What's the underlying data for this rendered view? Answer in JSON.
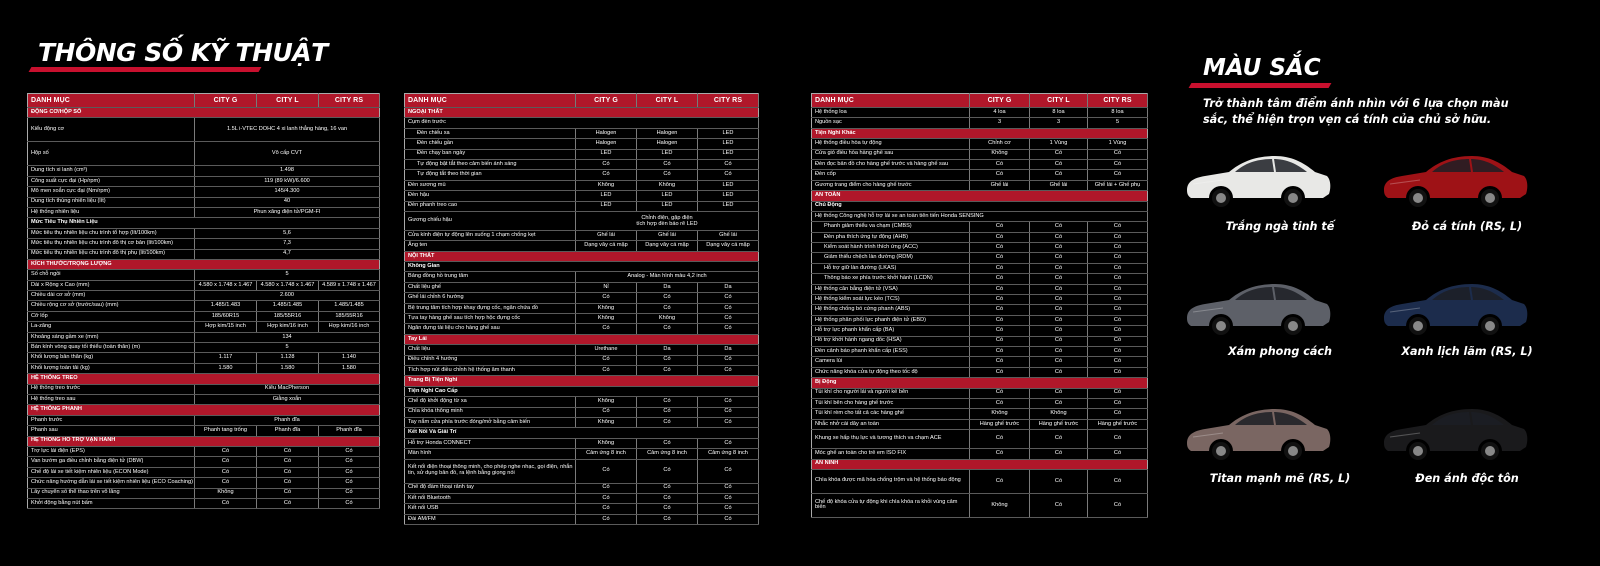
{
  "title": "THÔNG SỐ KỸ THUẬT",
  "headers": [
    "DANH MỤC",
    "CITY G",
    "CITY L",
    "CITY RS"
  ],
  "table1": [
    {
      "t": "sec",
      "c": [
        "ĐỘNG CƠ/HỘP SỐ"
      ]
    },
    {
      "t": "row",
      "h": "r3",
      "c": [
        "Kiểu động cơ",
        "1.5L i-VTEC DOHC 4 xi lanh thẳng hàng, 16 van"
      ]
    },
    {
      "t": "row",
      "h": "r3",
      "c": [
        "Hộp số",
        "Vô cấp CVT"
      ]
    },
    {
      "t": "row",
      "c": [
        "Dung tích xi lanh (cm³)",
        "1.498"
      ]
    },
    {
      "t": "row",
      "c": [
        "Công suất cực đại (Hp/rpm)",
        "119 (89 kW)/6.600"
      ]
    },
    {
      "t": "row",
      "c": [
        "Mô men xoắn cực đại (Nm/rpm)",
        "145/4.300"
      ]
    },
    {
      "t": "row",
      "c": [
        "Dung tích thùng nhiên liệu (lít)",
        "40"
      ]
    },
    {
      "t": "row",
      "c": [
        "Hệ thống nhiên liệu",
        "Phun xăng điện tử/PGM-FI"
      ]
    },
    {
      "t": "sub",
      "c": [
        "Mức Tiêu Thụ Nhiên Liệu"
      ]
    },
    {
      "t": "row",
      "c": [
        "Mức tiêu thụ nhiên liệu chu trình tổ hợp (lít/100km)",
        "5,6"
      ]
    },
    {
      "t": "row",
      "c": [
        "Mức tiêu thụ nhiên liệu chu trình đô thị cơ bản (lít/100km)",
        "7,3"
      ]
    },
    {
      "t": "row",
      "c": [
        "Mức tiêu thụ nhiên liệu chu trình đô thị phụ (lít/100km)",
        "4,7"
      ]
    },
    {
      "t": "sec",
      "c": [
        "KÍCH THƯỚC/TRỌNG LƯỢNG"
      ]
    },
    {
      "t": "row",
      "c": [
        "Số chỗ ngồi",
        "5"
      ]
    },
    {
      "t": "row",
      "c": [
        "Dài x Rộng x Cao (mm)",
        "4.580 x 1.748 x 1.467",
        "4.580 x 1.748 x 1.467",
        "4.589 x 1.748 x 1.467"
      ]
    },
    {
      "t": "row",
      "c": [
        "Chiều dài cơ sở (mm)",
        "2.600"
      ]
    },
    {
      "t": "row",
      "c": [
        "Chiều rộng cơ sở (trước/sau) (mm)",
        "1.485/1.483",
        "1.485/1.485",
        "1.485/1.485"
      ]
    },
    {
      "t": "row",
      "c": [
        "Cỡ lốp",
        "185/60R15",
        "185/55R16",
        "185/55R16"
      ]
    },
    {
      "t": "row",
      "c": [
        "La-zăng",
        "Hợp kim/15 inch",
        "Hợp kim/16 inch",
        "Hợp kim/16 inch"
      ]
    },
    {
      "t": "row",
      "c": [
        "Khoảng sáng gầm xe (mm)",
        "134"
      ]
    },
    {
      "t": "row",
      "c": [
        "Bán kính vòng quay tối thiểu (toàn thân) (m)",
        "5"
      ]
    },
    {
      "t": "row",
      "c": [
        "Khối lượng bản thân (kg)",
        "1.117",
        "1.128",
        "1.140"
      ]
    },
    {
      "t": "row",
      "c": [
        "Khối lượng toàn tải (kg)",
        "1.580",
        "1.580",
        "1.580"
      ]
    },
    {
      "t": "sec",
      "c": [
        "HỆ THỐNG TREO"
      ]
    },
    {
      "t": "row",
      "c": [
        "Hệ thống treo trước",
        "Kiểu MacPherson"
      ]
    },
    {
      "t": "row",
      "c": [
        "Hệ thống treo sau",
        "Giằng xoắn"
      ]
    },
    {
      "t": "sec",
      "c": [
        "HỆ THỐNG PHANH"
      ]
    },
    {
      "t": "row",
      "c": [
        "Phanh trước",
        "Phanh đĩa"
      ]
    },
    {
      "t": "row",
      "c": [
        "Phanh sau",
        "Phanh tang trống",
        "Phanh đĩa",
        "Phanh đĩa"
      ]
    },
    {
      "t": "sec",
      "c": [
        "HỆ THỐNG HỖ TRỢ VẬN HÀNH"
      ]
    },
    {
      "t": "row",
      "c": [
        "Trợ lực lái điện (EPS)",
        "Có",
        "Có",
        "Có"
      ]
    },
    {
      "t": "row",
      "c": [
        "Van bướm ga điều chỉnh bằng điện tử (DBW)",
        "Có",
        "Có",
        "Có"
      ]
    },
    {
      "t": "row",
      "c": [
        "Chế độ lái xe tiết kiệm nhiên liệu (ECON Mode)",
        "Có",
        "Có",
        "Có"
      ]
    },
    {
      "t": "row",
      "c": [
        "Chức năng hướng dẫn lái xe tiết kiệm nhiên liệu (ECO Coaching)",
        "Có",
        "Có",
        "Có"
      ]
    },
    {
      "t": "row",
      "c": [
        "Lẫy chuyển số thể thao trên vô lăng",
        "Không",
        "Có",
        "Có"
      ]
    },
    {
      "t": "row",
      "c": [
        "Khởi động bằng nút bấm",
        "Có",
        "Có",
        "Có"
      ]
    }
  ],
  "table2": [
    {
      "t": "sec",
      "c": [
        "NGOẠI THẤT"
      ]
    },
    {
      "t": "row",
      "c": [
        "Cụm đèn trước"
      ]
    },
    {
      "t": "row",
      "i": 1,
      "c": [
        "Đèn chiếu xa",
        "Halogen",
        "Halogen",
        "LED"
      ]
    },
    {
      "t": "row",
      "i": 1,
      "c": [
        "Đèn chiếu gần",
        "Halogen",
        "Halogen",
        "LED"
      ]
    },
    {
      "t": "row",
      "i": 1,
      "c": [
        "Đèn chạy ban ngày",
        "LED",
        "LED",
        "LED"
      ]
    },
    {
      "t": "row",
      "i": 1,
      "c": [
        "Tự động bật tắt theo cảm biến ánh sáng",
        "Có",
        "Có",
        "Có"
      ]
    },
    {
      "t": "row",
      "i": 1,
      "c": [
        "Tự động tắt theo thời gian",
        "Có",
        "Có",
        "Có"
      ]
    },
    {
      "t": "row",
      "c": [
        "Đèn sương mù",
        "Không",
        "Không",
        "LED"
      ]
    },
    {
      "t": "row",
      "c": [
        "Đèn hậu",
        "LED",
        "LED",
        "LED"
      ]
    },
    {
      "t": "row",
      "c": [
        "Đèn phanh treo cao",
        "LED",
        "LED",
        "LED"
      ]
    },
    {
      "t": "row",
      "h": "r2",
      "c": [
        "Gương chiếu hậu",
        "Chỉnh điện, gập điện\ntích hợp đèn báo rẽ LED"
      ]
    },
    {
      "t": "row",
      "c": [
        "Cửa kính điện tự động lên xuống 1 chạm chống kẹt",
        "Ghế lái",
        "Ghế lái",
        "Ghế lái"
      ]
    },
    {
      "t": "row",
      "c": [
        "Ăng ten",
        "Dạng vây cá mập",
        "Dạng vây cá mập",
        "Dạng vây cá mập"
      ]
    },
    {
      "t": "sec",
      "c": [
        "NỘI THẤT"
      ]
    },
    {
      "t": "sub",
      "c": [
        "Không Gian"
      ]
    },
    {
      "t": "row",
      "c": [
        "Bảng đồng hồ trung tâm",
        "Analog - Màn hình màu 4,2 inch"
      ]
    },
    {
      "t": "row",
      "c": [
        "Chất liệu ghế",
        "Nỉ",
        "Da",
        "Da"
      ]
    },
    {
      "t": "row",
      "c": [
        "Ghế lái chỉnh 6 hướng",
        "Có",
        "Có",
        "Có"
      ]
    },
    {
      "t": "row",
      "c": [
        "Bệ trung tâm tích hợp khay đựng cốc, ngăn chứa đồ",
        "Không",
        "Có",
        "Có"
      ]
    },
    {
      "t": "row",
      "c": [
        "Tựa tay hàng ghế sau tích hợp hộc đựng cốc",
        "Không",
        "Không",
        "Có"
      ]
    },
    {
      "t": "row",
      "c": [
        "Ngăn đựng tài liệu cho hàng ghế sau",
        "Có",
        "Có",
        "Có"
      ]
    },
    {
      "t": "sec",
      "c": [
        "Tay Lái"
      ]
    },
    {
      "t": "row",
      "c": [
        "Chất liệu",
        "Urethane",
        "Da",
        "Da"
      ]
    },
    {
      "t": "row",
      "c": [
        "Điều chỉnh 4 hướng",
        "Có",
        "Có",
        "Có"
      ]
    },
    {
      "t": "row",
      "c": [
        "Tích hợp nút điều chỉnh hệ thống âm thanh",
        "Có",
        "Có",
        "Có"
      ]
    },
    {
      "t": "sec",
      "c": [
        "Trang Bị Tiện Nghi"
      ]
    },
    {
      "t": "sub",
      "c": [
        "Tiện Nghi Cao Cấp"
      ]
    },
    {
      "t": "row",
      "c": [
        "Chế độ khởi động từ xa",
        "Không",
        "Có",
        "Có"
      ]
    },
    {
      "t": "row",
      "c": [
        "Chìa khóa thông minh",
        "Có",
        "Có",
        "Có"
      ]
    },
    {
      "t": "row",
      "c": [
        "Tay nắm cửa phía trước đóng/mở bằng cảm biến",
        "Không",
        "Có",
        "Có"
      ]
    },
    {
      "t": "sub",
      "c": [
        "Kết Nối Và Giải Trí"
      ]
    },
    {
      "t": "row",
      "c": [
        "Hỗ trợ Honda CONNECT",
        "Không",
        "Có",
        "Có"
      ]
    },
    {
      "t": "row",
      "c": [
        "Màn hình",
        "Cảm ứng 8 inch",
        "Cảm ứng 8 inch",
        "Cảm ứng 8 inch"
      ]
    },
    {
      "t": "row",
      "h": "r3",
      "c": [
        "Kết nối điện thoại thông minh, cho phép nghe nhạc, gọi điện, nhắn tin, sử dụng bản đồ, ra lệnh bằng giọng nói",
        "Có",
        "Có",
        "Có"
      ]
    },
    {
      "t": "row",
      "c": [
        "Chế độ đàm thoại rảnh tay",
        "Có",
        "Có",
        "Có"
      ]
    },
    {
      "t": "row",
      "c": [
        "Kết nối Bluetooth",
        "Có",
        "Có",
        "Có"
      ]
    },
    {
      "t": "row",
      "c": [
        "Kết nối USB",
        "Có",
        "Có",
        "Có"
      ]
    },
    {
      "t": "row",
      "c": [
        "Đài AM/FM",
        "Có",
        "Có",
        "Có"
      ]
    }
  ],
  "table3": [
    {
      "t": "row",
      "c": [
        "Hệ thống loa",
        "4 loa",
        "8 loa",
        "8 loa"
      ]
    },
    {
      "t": "row",
      "c": [
        "Nguồn sạc",
        "3",
        "3",
        "5"
      ]
    },
    {
      "t": "sec",
      "c": [
        "Tiện Nghi Khác"
      ]
    },
    {
      "t": "row",
      "c": [
        "Hệ thống điều hòa tự động",
        "Chỉnh cơ",
        "1 Vùng",
        "1 Vùng"
      ]
    },
    {
      "t": "row",
      "c": [
        "Cửa gió điều hòa hàng ghế sau",
        "Không",
        "Có",
        "Có"
      ]
    },
    {
      "t": "row",
      "c": [
        "Đèn đọc bản đồ cho hàng ghế trước và hàng ghế sau",
        "Có",
        "Có",
        "Có"
      ]
    },
    {
      "t": "row",
      "c": [
        "Đèn cốp",
        "Có",
        "Có",
        "Có"
      ]
    },
    {
      "t": "row",
      "c": [
        "Gương trang điểm cho hàng ghế trước",
        "Ghế lái",
        "Ghế lái",
        "Ghế lái + Ghế phụ"
      ]
    },
    {
      "t": "sec",
      "c": [
        "AN TOÀN"
      ]
    },
    {
      "t": "sub",
      "c": [
        "Chủ Động"
      ]
    },
    {
      "t": "row",
      "c": [
        "Hệ thống Công nghệ hỗ trợ lái xe an toàn tiên tiến Honda SENSING"
      ]
    },
    {
      "t": "row",
      "i": 1,
      "c": [
        "Phanh giảm thiểu va chạm (CMBS)",
        "Có",
        "Có",
        "Có"
      ]
    },
    {
      "t": "row",
      "i": 1,
      "c": [
        "Đèn pha thích ứng tự động (AHB)",
        "Có",
        "Có",
        "Có"
      ]
    },
    {
      "t": "row",
      "i": 1,
      "c": [
        "Kiểm soát hành trình thích ứng (ACC)",
        "Có",
        "Có",
        "Có"
      ]
    },
    {
      "t": "row",
      "i": 1,
      "c": [
        "Giảm thiểu chệch làn đường (RDM)",
        "Có",
        "Có",
        "Có"
      ]
    },
    {
      "t": "row",
      "i": 1,
      "c": [
        "Hỗ trợ giữ làn đường (LKAS)",
        "Có",
        "Có",
        "Có"
      ]
    },
    {
      "t": "row",
      "i": 1,
      "c": [
        "Thông báo xe phía trước khởi hành (LCDN)",
        "Có",
        "Có",
        "Có"
      ]
    },
    {
      "t": "row",
      "c": [
        "Hệ thống cân bằng điện tử (VSA)",
        "Có",
        "Có",
        "Có"
      ]
    },
    {
      "t": "row",
      "c": [
        "Hệ thống kiểm soát lực kéo (TCS)",
        "Có",
        "Có",
        "Có"
      ]
    },
    {
      "t": "row",
      "c": [
        "Hệ thống chống bó cứng phanh (ABS)",
        "Có",
        "Có",
        "Có"
      ]
    },
    {
      "t": "row",
      "c": [
        "Hệ thống phân phối lực phanh điện tử (EBD)",
        "Có",
        "Có",
        "Có"
      ]
    },
    {
      "t": "row",
      "c": [
        "Hỗ trợ lực phanh khẩn cấp (BA)",
        "Có",
        "Có",
        "Có"
      ]
    },
    {
      "t": "row",
      "c": [
        "Hỗ trợ khởi hành ngang dốc (HSA)",
        "Có",
        "Có",
        "Có"
      ]
    },
    {
      "t": "row",
      "c": [
        "Đèn cảnh báo phanh khẩn cấp (ESS)",
        "Có",
        "Có",
        "Có"
      ]
    },
    {
      "t": "row",
      "c": [
        "Camera lùi",
        "Có",
        "Có",
        "Có"
      ]
    },
    {
      "t": "row",
      "c": [
        "Chức năng khóa cửa tự động theo tốc độ",
        "Có",
        "Có",
        "Có"
      ]
    },
    {
      "t": "sec",
      "c": [
        "Bị Động"
      ]
    },
    {
      "t": "row",
      "c": [
        "Túi khí cho người lái và người kế bên",
        "Có",
        "Có",
        "Có"
      ]
    },
    {
      "t": "row",
      "c": [
        "Túi khí bên cho hàng ghế trước",
        "Có",
        "Có",
        "Có"
      ]
    },
    {
      "t": "row",
      "c": [
        "Túi khí rèm cho tất cả các hàng ghế",
        "Không",
        "Không",
        "Có"
      ]
    },
    {
      "t": "row",
      "c": [
        "Nhắc nhở cài dây an toàn",
        "Hàng ghế trước",
        "Hàng ghế trước",
        "Hàng ghế trước"
      ]
    },
    {
      "t": "row",
      "h": "r2",
      "c": [
        "Khung xe hấp thụ lực và tương thích va chạm ACE",
        "Có",
        "Có",
        "Có"
      ]
    },
    {
      "t": "row",
      "c": [
        "Móc ghế an toàn cho trẻ em ISO FIX",
        "Có",
        "Có",
        "Có"
      ]
    },
    {
      "t": "sec",
      "c": [
        "AN NINH"
      ]
    },
    {
      "t": "row",
      "h": "r3",
      "c": [
        "Chìa khóa được mã hóa chống trộm và hệ thống báo động",
        "Có",
        "Có",
        "Có"
      ]
    },
    {
      "t": "row",
      "h": "r3",
      "c": [
        "Chế độ khóa cửa tự động khi chìa khóa ra khỏi vùng cảm biến",
        "Không",
        "Có",
        "Có"
      ]
    }
  ],
  "colors": {
    "title": "MÀU SẮC",
    "subtitle": "Trở thành tâm điểm ánh nhìn với 6 lựa chọn màu sắc, thể hiện trọn vẹn cá tính của chủ sở hữu.",
    "items": [
      {
        "label": "Trắng ngà tinh tế",
        "hex": "#e8e8e6"
      },
      {
        "label": "Đỏ cá tính (RS, L)",
        "hex": "#9e1216"
      },
      {
        "label": "Xám phong cách",
        "hex": "#5d6068"
      },
      {
        "label": "Xanh lịch lãm (RS, L)",
        "hex": "#1c2c4c"
      },
      {
        "label": "Titan mạnh mẽ (RS, L)",
        "hex": "#7a6662"
      },
      {
        "label": "Đen ánh độc tôn",
        "hex": "#1a1a1c"
      }
    ]
  },
  "accent": "#b0172a"
}
